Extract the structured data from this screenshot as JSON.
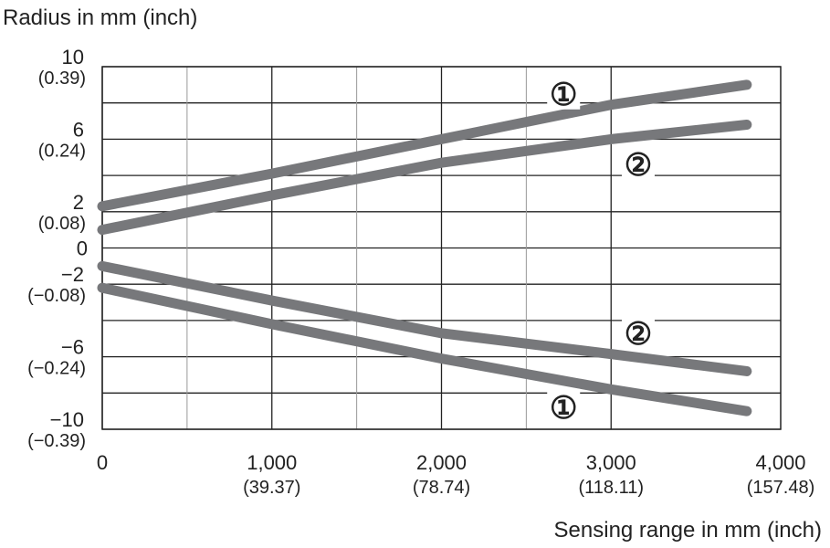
{
  "chart_data": {
    "type": "line",
    "ylabel": "Radius in mm (inch)",
    "xlabel": "Sensing range in mm (inch)",
    "xlim": [
      0,
      4000
    ],
    "ylim": [
      -10,
      10
    ],
    "grid": true,
    "x_ticks": [
      {
        "value": 0,
        "label": "0",
        "sub": ""
      },
      {
        "value": 1000,
        "label": "1,000",
        "sub": "(39.37)"
      },
      {
        "value": 2000,
        "label": "2,000",
        "sub": "(78.74)"
      },
      {
        "value": 3000,
        "label": "3,000",
        "sub": "(118.11)"
      },
      {
        "value": 4000,
        "label": "4,000",
        "sub": "(157.48)"
      }
    ],
    "y_ticks": [
      {
        "value": 10,
        "label": "10",
        "sub": "(0.39)"
      },
      {
        "value": 6,
        "label": "6",
        "sub": "(0.24)"
      },
      {
        "value": 2,
        "label": "2",
        "sub": "(0.08)"
      },
      {
        "value": 0,
        "label": "0",
        "sub": ""
      },
      {
        "value": -2,
        "label": "−2",
        "sub": "(−0.08)"
      },
      {
        "value": -6,
        "label": "−6",
        "sub": "(−0.24)"
      },
      {
        "value": -10,
        "label": "−10",
        "sub": "(−0.39)"
      }
    ],
    "x": [
      0,
      1000,
      2000,
      3000,
      3800
    ],
    "series": [
      {
        "name": "①",
        "values": [
          2.3,
          4.1,
          6.0,
          7.9,
          9.0
        ]
      },
      {
        "name": "②",
        "values": [
          1.0,
          2.9,
          4.7,
          6.0,
          6.8
        ]
      },
      {
        "name": "②",
        "values": [
          -1.0,
          -2.9,
          -4.7,
          -5.85,
          -6.8
        ]
      },
      {
        "name": "①",
        "values": [
          -2.2,
          -4.2,
          -6.1,
          -7.8,
          -9.0
        ]
      }
    ],
    "annotations": [
      {
        "text": "①",
        "x": 2720,
        "y": 8.5
      },
      {
        "text": "②",
        "x": 3160,
        "y": 4.6
      },
      {
        "text": "②",
        "x": 3160,
        "y": -4.7
      },
      {
        "text": "①",
        "x": 2720,
        "y": -8.8
      }
    ],
    "line_color": "#77787b",
    "grid_color": "#222222"
  }
}
